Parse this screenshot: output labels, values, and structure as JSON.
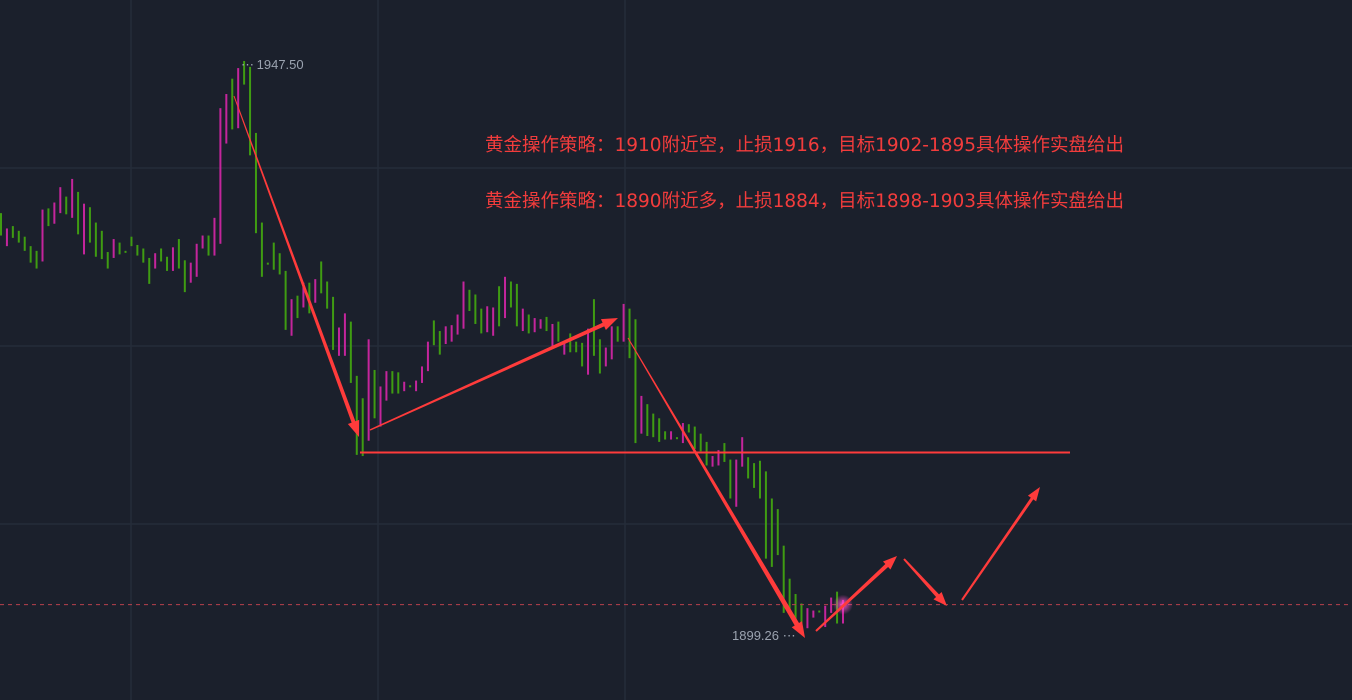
{
  "chart_data": {
    "type": "candlestick",
    "title": "",
    "colors": {
      "up": "#c4259c",
      "down": "#3f9c12",
      "annotation": "#ff3b3b",
      "background": "#1b202c",
      "grid": "#252c39",
      "label": "#9ba3b0"
    },
    "grid": true,
    "bars": [
      [
        1934.6,
        1932.7
      ],
      [
        1931.8,
        1933.3
      ],
      [
        1933.5,
        1932.5
      ],
      [
        1933.1,
        1932.1
      ],
      [
        1932.6,
        1931.4
      ],
      [
        1931.8,
        1930.4
      ],
      [
        1931.4,
        1929.9
      ],
      [
        1930.5,
        1934.9
      ],
      [
        1935.0,
        1933.5
      ],
      [
        1933.7,
        1935.5
      ],
      [
        1934.6,
        1936.8
      ],
      [
        1936.0,
        1934.5
      ],
      [
        1934.2,
        1937.5
      ],
      [
        1936.4,
        1932.8
      ],
      [
        1931.1,
        1935.4
      ],
      [
        1935.1,
        1932.1
      ],
      [
        1933.8,
        1930.9
      ],
      [
        1933.1,
        1930.7
      ],
      [
        1931.3,
        1929.9
      ],
      [
        1930.8,
        1932.4
      ],
      [
        1932.1,
        1931.1
      ],
      [
        1931.4,
        1931.3
      ],
      [
        1932.6,
        1931.8
      ],
      [
        1931.9,
        1931.0
      ],
      [
        1931.6,
        1930.4
      ],
      [
        1930.8,
        1928.6
      ],
      [
        1929.9,
        1931.2
      ],
      [
        1931.6,
        1930.5
      ],
      [
        1930.9,
        1929.7
      ],
      [
        1929.7,
        1931.7
      ],
      [
        1932.4,
        1929.9
      ],
      [
        1930.6,
        1927.9
      ],
      [
        1928.7,
        1930.4
      ],
      [
        1929.2,
        1932.0
      ],
      [
        1931.6,
        1932.7
      ],
      [
        1932.7,
        1931.0
      ],
      [
        1931.0,
        1934.2
      ],
      [
        1932.0,
        1943.5
      ],
      [
        1940.5,
        1944.7
      ],
      [
        1946.0,
        1941.7
      ],
      [
        1941.8,
        1946.9
      ],
      [
        1947.5,
        1945.5
      ],
      [
        1947.0,
        1939.5
      ],
      [
        1941.4,
        1932.9
      ],
      [
        1933.8,
        1929.2
      ],
      [
        1930.4,
        1930.4
      ],
      [
        1932.1,
        1929.8
      ],
      [
        1931.2,
        1929.4
      ],
      [
        1929.7,
        1924.7
      ],
      [
        1924.2,
        1927.3
      ],
      [
        1927.6,
        1925.7
      ],
      [
        1926.6,
        1928.7
      ],
      [
        1928.7,
        1926.1
      ],
      [
        1927.0,
        1929.0
      ],
      [
        1930.5,
        1927.8
      ],
      [
        1928.8,
        1926.5
      ],
      [
        1927.5,
        1923.0
      ],
      [
        1922.5,
        1924.9
      ],
      [
        1922.5,
        1926.1
      ],
      [
        1925.4,
        1920.2
      ],
      [
        1920.8,
        1914.1
      ],
      [
        1918.9,
        1914.0
      ],
      [
        1915.3,
        1923.9
      ],
      [
        1921.3,
        1917.2
      ],
      [
        1916.5,
        1919.9
      ],
      [
        1918.7,
        1921.2
      ],
      [
        1921.2,
        1919.3
      ],
      [
        1921.1,
        1919.3
      ],
      [
        1919.5,
        1920.3
      ],
      [
        1920.0,
        1920.0
      ],
      [
        1919.5,
        1920.4
      ],
      [
        1920.2,
        1921.6
      ],
      [
        1921.2,
        1923.7
      ],
      [
        1925.5,
        1923.4
      ],
      [
        1924.6,
        1922.6
      ],
      [
        1923.5,
        1925.0
      ],
      [
        1923.7,
        1925.1
      ],
      [
        1924.3,
        1926.0
      ],
      [
        1924.8,
        1928.8
      ],
      [
        1928.1,
        1926.3
      ],
      [
        1927.7,
        1925.2
      ],
      [
        1926.5,
        1924.4
      ],
      [
        1924.5,
        1926.7
      ],
      [
        1924.2,
        1926.6
      ],
      [
        1928.4,
        1925.0
      ],
      [
        1925.7,
        1929.2
      ],
      [
        1928.8,
        1926.6
      ],
      [
        1928.6,
        1925.0
      ],
      [
        1924.6,
        1926.5
      ],
      [
        1926.0,
        1924.4
      ],
      [
        1924.5,
        1925.7
      ],
      [
        1924.8,
        1925.6
      ],
      [
        1925.8,
        1924.6
      ],
      [
        1923.3,
        1925.2
      ],
      [
        1925.4,
        1923.7
      ],
      [
        1922.6,
        1923.7
      ],
      [
        1924.4,
        1922.8
      ],
      [
        1923.7,
        1922.8
      ],
      [
        1923.6,
        1921.6
      ],
      [
        1920.9,
        1924.8
      ],
      [
        1927.3,
        1922.5
      ],
      [
        1923.9,
        1921.0
      ],
      [
        1921.6,
        1923.2
      ],
      [
        1922.2,
        1925.0
      ],
      [
        1925.0,
        1923.7
      ],
      [
        1923.7,
        1926.9
      ],
      [
        1926.5,
        1922.3
      ],
      [
        1925.6,
        1915.1
      ],
      [
        1915.9,
        1919.1
      ],
      [
        1918.4,
        1915.7
      ],
      [
        1917.6,
        1915.6
      ],
      [
        1917.2,
        1915.2
      ],
      [
        1916.1,
        1915.4
      ],
      [
        1915.4,
        1916.1
      ],
      [
        1915.6,
        1915.6
      ],
      [
        1915.1,
        1916.8
      ],
      [
        1916.7,
        1916.0
      ],
      [
        1916.5,
        1914.6
      ],
      [
        1915.9,
        1914.4
      ],
      [
        1915.2,
        1913.2
      ],
      [
        1913.1,
        1914.0
      ],
      [
        1913.2,
        1914.5
      ],
      [
        1915.1,
        1913.5
      ],
      [
        1913.7,
        1910.4
      ],
      [
        1909.7,
        1913.7
      ],
      [
        1913.1,
        1915.6
      ],
      [
        1913.9,
        1912.1
      ],
      [
        1913.4,
        1911.3
      ],
      [
        1913.6,
        1910.4
      ],
      [
        1912.7,
        1905.3
      ],
      [
        1910.4,
        1904.6
      ],
      [
        1909.5,
        1905.6
      ],
      [
        1906.4,
        1900.7
      ],
      [
        1903.6,
        1900.6
      ],
      [
        1902.3,
        1899.7
      ],
      [
        1901.5,
        1899.3
      ],
      [
        1899.4,
        1901.1
      ],
      [
        1900.3,
        1900.9
      ],
      [
        1900.9,
        1900.9
      ],
      [
        1899.5,
        1901.3
      ],
      [
        1900.7,
        1902.0
      ],
      [
        1902.5,
        1899.8
      ],
      [
        1899.8,
        1901.8
      ]
    ],
    "high_label": "1947.50",
    "low_label": "1899.26",
    "level_line": 1914.3,
    "current_price": 1901.4,
    "annotations": [
      "黄金操作策略：1910附近空，止损1916，目标1902-1895具体操作实盘给出",
      "黄金操作策略：1890附近多，止损1884，目标1898-1903具体操作实盘给出"
    ]
  }
}
